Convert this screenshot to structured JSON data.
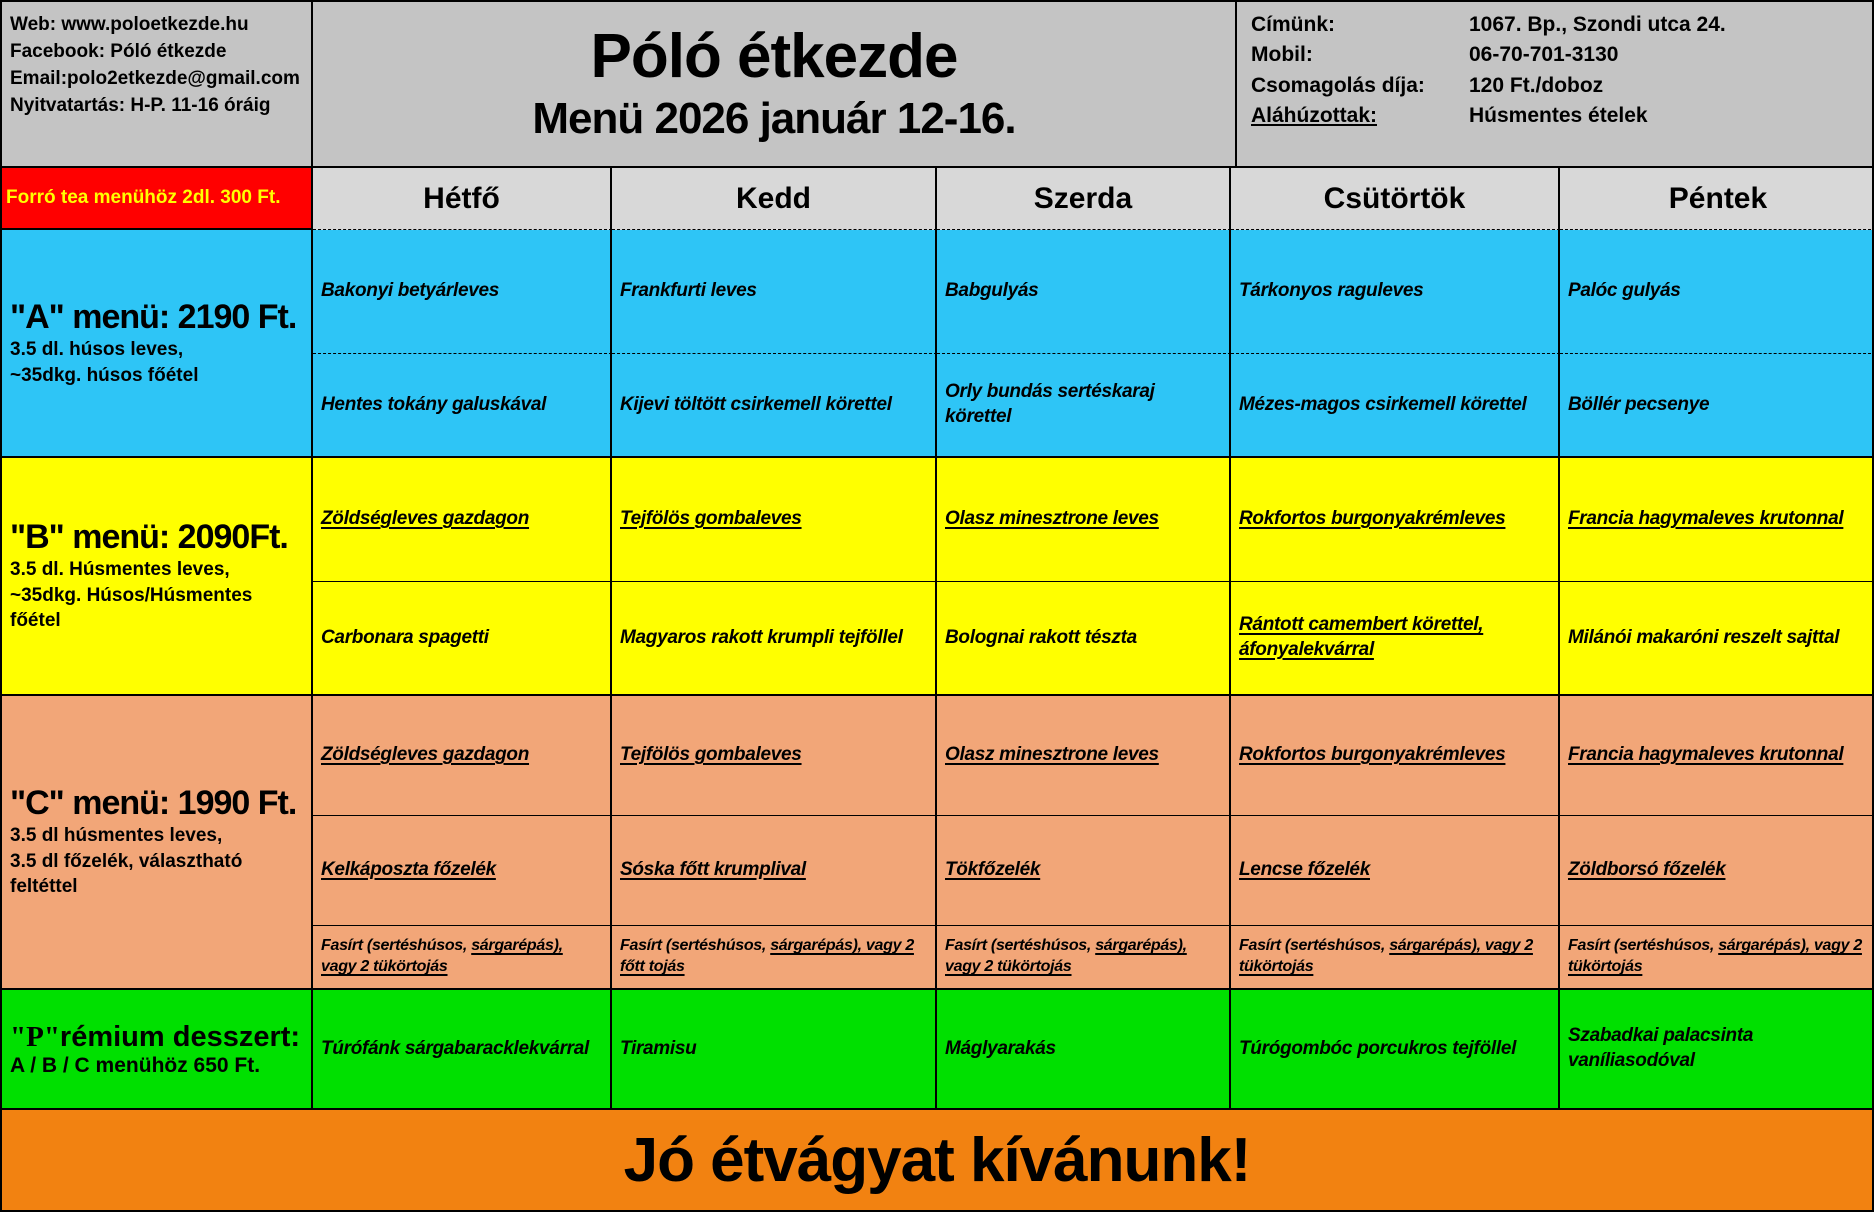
{
  "header": {
    "left": {
      "lines": [
        "Web: www.poloetkezde.hu",
        "Facebook: Póló étkezde",
        "Email:polo2etkezde@gmail.com",
        "Nyitvatartás: H-P. 11-16 óráig"
      ]
    },
    "title": "Póló étkezde",
    "subtitle": "Menü 2026 január 12-16.",
    "right": {
      "rows": [
        {
          "label": "Címünk:",
          "value": "1067. Bp., Szondi utca 24."
        },
        {
          "label": "Mobil:",
          "value": "06-70-701-3130"
        },
        {
          "label": "Csomagolás díja:",
          "value": "120 Ft./doboz"
        },
        {
          "label": "Aláhúzottak:",
          "value": "Húsmentes ételek"
        }
      ]
    }
  },
  "table": {
    "promo": "Forró tea menühöz 2dl. 300 Ft.",
    "days": [
      "Hétfő",
      "Kedd",
      "Szerda",
      "Csütörtök",
      "Péntek"
    ]
  },
  "menu": {
    "a": {
      "title": "\"A\" menü: 2190 Ft.",
      "desc1": "3.5 dl. húsos leves,",
      "desc2": "~35dkg. húsos főétel",
      "soups": [
        "Bakonyi betyárleves",
        "Frankfurti leves",
        "Babgulyás",
        "Tárkonyos raguleves",
        "Palóc gulyás"
      ],
      "mains": [
        "Hentes tokány galuskával",
        "Kijevi töltött csirkemell körettel",
        "Orly bundás sertéskaraj körettel",
        "Mézes-magos csirkemell körettel",
        "Böllér pecsenye"
      ]
    },
    "b": {
      "title": "\"B\" menü: 2090Ft.",
      "desc1": "3.5 dl. Húsmentes leves,",
      "desc2": "~35dkg. Húsos/Húsmentes főétel",
      "soups": [
        "Zöldségleves gazdagon",
        "Tejfölös gombaleves",
        "Olasz minesztrone leves",
        "Rokfortos burgonyakrémleves",
        "Francia hagymaleves krutonnal"
      ],
      "mains": [
        "Carbonara spagetti",
        "Magyaros rakott krumpli tejföllel",
        "Bolognai rakott tészta",
        "Rántott camembert körettel, áfonyalekvárral",
        "Milánói makaróni reszelt sajttal"
      ]
    },
    "c": {
      "title": "\"C\" menü: 1990 Ft.",
      "desc1": "3.5 dl húsmentes leves,",
      "desc2": "3.5 dl főzelék, választható feltéttel",
      "soups": [
        "Zöldségleves gazdagon",
        "Tejfölös gombaleves",
        "Olasz minesztrone leves",
        "Rokfortos burgonyakrémleves",
        "Francia hagymaleves krutonnal"
      ],
      "fozelek": [
        "Kelkáposzta főzelék",
        "Sóska főtt krumplival",
        "Tökfőzelék",
        "Lencse főzelék",
        "Zöldborsó főzelék"
      ],
      "fasirt": [
        {
          "plain": "Fasírt (sertéshúsos, ",
          "underlined": "sárgarépás), vagy 2 tükörtojás"
        },
        {
          "plain": "Fasírt (sertéshúsos, ",
          "underlined": "sárgarépás), vagy 2 főtt tojás"
        },
        {
          "plain": "Fasírt (sertéshúsos, ",
          "underlined": "sárgarépás), vagy 2 tükörtojás"
        },
        {
          "plain": "Fasírt (sertéshúsos, ",
          "underlined": "sárgarépás), vagy 2 tükörtojás"
        },
        {
          "plain": "Fasírt (sertéshúsos, ",
          "underlined": "sárgarépás), vagy 2 tükörtojás"
        }
      ]
    },
    "p": {
      "title_p": "\"P\"",
      "title_rest": "rémium desszert:",
      "desc": "A / B / C menühöz 650 Ft.",
      "desserts": [
        "Túrófánk sárgabaracklekvárral",
        "Tiramisu",
        "Máglyarakás",
        "Túrógombóc porcukros tejföllel",
        "Szabadkai palacsinta vaníliasodóval"
      ]
    }
  },
  "footer": {
    "banner": "Jó étvágyat kívánunk!"
  },
  "colors": {
    "menu_a_bg": "#2ec5f6",
    "menu_b_bg": "#ffff00",
    "menu_c_bg": "#f2a678",
    "dessert_bg": "#00e000",
    "promo_bg": "#ff0000",
    "promo_text": "#ffff00",
    "banner_bg": "#f28211",
    "header_bg": "#c4c4c4",
    "day_header_bg": "#d8d8d8"
  }
}
